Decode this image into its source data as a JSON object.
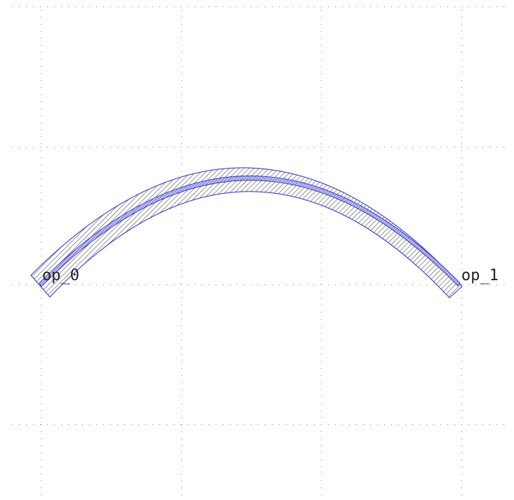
{
  "layout_view": {
    "ports": [
      {
        "id": "port_0",
        "label": "op_0"
      },
      {
        "id": "port_1",
        "label": "op_1"
      }
    ],
    "colors": {
      "background": "#ffffff",
      "grid_dot": "#9a9a9a",
      "waveguide_outline": "#2b2bd6",
      "cladding_hatch": "#5a5a5a",
      "core_fill": "#4a4ac8",
      "label": "#222222"
    },
    "grid": "dotted",
    "hatch": "diagonal"
  }
}
